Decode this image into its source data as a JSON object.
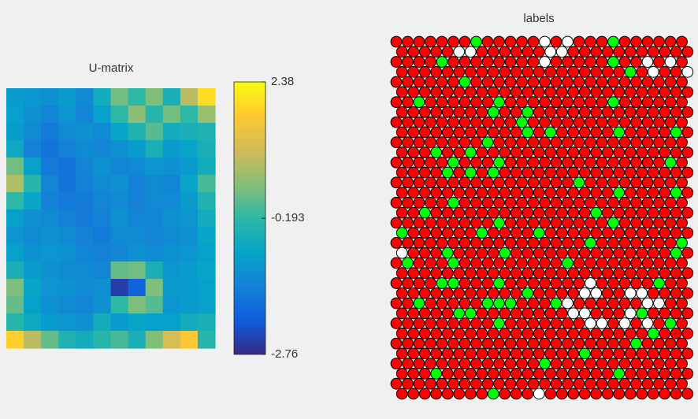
{
  "chart_data": [
    {
      "type": "heatmap",
      "title": "U-matrix",
      "colormap": [
        "#352a87",
        "#0f5cdd",
        "#1481d6",
        "#06a4ca",
        "#2eb7a4",
        "#87bf77",
        "#d1bb59",
        "#fec832",
        "#f9fb0e"
      ],
      "clim": [
        -2.76,
        2.38
      ],
      "cticks": [
        -2.76,
        -0.193,
        2.38
      ],
      "values": [
        [
          -1.0,
          -1.1,
          -1.2,
          -1.0,
          -1.3,
          -0.6,
          0.3,
          -0.2,
          0.4,
          -0.5,
          0.9,
          2.0
        ],
        [
          -0.9,
          -1.2,
          -1.4,
          -1.1,
          -1.4,
          -0.9,
          -0.2,
          0.5,
          -0.3,
          0.3,
          -0.2,
          0.6
        ],
        [
          -1.0,
          -1.3,
          -1.6,
          -1.3,
          -1.2,
          -1.3,
          -0.8,
          -0.4,
          0.1,
          -0.6,
          -0.5,
          -0.4
        ],
        [
          -0.7,
          -1.5,
          -1.7,
          -1.5,
          -1.3,
          -1.4,
          -1.2,
          -1.0,
          -0.5,
          -1.0,
          -0.8,
          -0.5
        ],
        [
          0.3,
          -0.9,
          -1.6,
          -1.7,
          -1.4,
          -1.2,
          -1.4,
          -1.3,
          -1.1,
          -1.2,
          -1.0,
          -0.6
        ],
        [
          0.8,
          -0.3,
          -1.4,
          -1.7,
          -1.5,
          -1.3,
          -1.2,
          -1.5,
          -1.3,
          -1.4,
          -0.8,
          0.0
        ],
        [
          -0.2,
          -0.8,
          -1.5,
          -1.6,
          -1.6,
          -1.4,
          -1.3,
          -1.5,
          -1.3,
          -1.3,
          -1.0,
          -0.4
        ],
        [
          -0.9,
          -1.2,
          -1.3,
          -1.5,
          -1.6,
          -1.5,
          -1.2,
          -1.4,
          -1.4,
          -1.2,
          -1.1,
          -0.6
        ],
        [
          -1.1,
          -1.3,
          -1.2,
          -1.3,
          -1.5,
          -1.6,
          -1.3,
          -1.3,
          -1.4,
          -1.3,
          -1.2,
          -0.8
        ],
        [
          -0.9,
          -1.2,
          -1.1,
          -1.2,
          -1.4,
          -1.5,
          -1.4,
          -1.2,
          -1.3,
          -1.2,
          -1.1,
          -0.9
        ],
        [
          -0.5,
          -1.0,
          -1.2,
          -1.3,
          -1.3,
          -1.4,
          0.2,
          0.3,
          -0.5,
          -1.1,
          -1.0,
          -0.8
        ],
        [
          0.4,
          -0.8,
          -1.1,
          -1.2,
          -1.3,
          -1.2,
          -2.5,
          -2.0,
          0.4,
          -1.0,
          -1.0,
          -0.9
        ],
        [
          0.2,
          -0.9,
          -1.2,
          -1.3,
          -1.4,
          -1.2,
          -0.2,
          0.4,
          0.1,
          -1.1,
          -1.0,
          -0.9
        ],
        [
          -0.3,
          -0.7,
          -1.0,
          -1.1,
          -1.2,
          -0.6,
          -1.0,
          -0.8,
          -0.9,
          -0.9,
          -0.6,
          -0.5
        ],
        [
          1.8,
          0.9,
          0.2,
          -0.4,
          -0.6,
          -0.3,
          0.0,
          -0.5,
          0.4,
          1.2,
          1.7,
          -0.3
        ]
      ]
    },
    {
      "type": "hexgrid",
      "title": "labels",
      "rows": 36,
      "cols": 26,
      "color": "#ff0000",
      "classes": [
        {
          "color": "#00ff00",
          "cells": [
            [
              0,
              7
            ],
            [
              0,
              19
            ],
            [
              2,
              4
            ],
            [
              2,
              19
            ],
            [
              3,
              20
            ],
            [
              4,
              6
            ],
            [
              6,
              2
            ],
            [
              6,
              9
            ],
            [
              6,
              19
            ],
            [
              7,
              8
            ],
            [
              7,
              11
            ],
            [
              8,
              11
            ],
            [
              9,
              11
            ],
            [
              9,
              13
            ],
            [
              9,
              19
            ],
            [
              9,
              24
            ],
            [
              10,
              8
            ],
            [
              11,
              3
            ],
            [
              11,
              6
            ],
            [
              12,
              5
            ],
            [
              12,
              9
            ],
            [
              12,
              24
            ],
            [
              13,
              4
            ],
            [
              13,
              6
            ],
            [
              13,
              8
            ],
            [
              14,
              16
            ],
            [
              15,
              19
            ],
            [
              15,
              24
            ],
            [
              16,
              5
            ],
            [
              17,
              2
            ],
            [
              17,
              17
            ],
            [
              18,
              9
            ],
            [
              18,
              19
            ],
            [
              19,
              0
            ],
            [
              19,
              7
            ],
            [
              19,
              12
            ],
            [
              20,
              17
            ],
            [
              20,
              25
            ],
            [
              21,
              4
            ],
            [
              21,
              9
            ],
            [
              21,
              24
            ],
            [
              22,
              1
            ],
            [
              22,
              5
            ],
            [
              22,
              15
            ],
            [
              24,
              4
            ],
            [
              24,
              5
            ],
            [
              24,
              9
            ],
            [
              24,
              23
            ],
            [
              25,
              11
            ],
            [
              26,
              2
            ],
            [
              26,
              8
            ],
            [
              26,
              9
            ],
            [
              26,
              10
            ],
            [
              26,
              14
            ],
            [
              27,
              5
            ],
            [
              27,
              6
            ],
            [
              27,
              21
            ],
            [
              28,
              9
            ],
            [
              28,
              24
            ],
            [
              29,
              22
            ],
            [
              30,
              21
            ],
            [
              31,
              16
            ],
            [
              32,
              13
            ],
            [
              33,
              3
            ],
            [
              33,
              19
            ],
            [
              35,
              8
            ]
          ]
        },
        {
          "color": "#ffffff",
          "cells": [
            [
              0,
              13
            ],
            [
              0,
              15
            ],
            [
              1,
              5
            ],
            [
              1,
              6
            ],
            [
              1,
              13
            ],
            [
              1,
              14
            ],
            [
              2,
              13
            ],
            [
              2,
              22
            ],
            [
              2,
              24
            ],
            [
              3,
              22
            ],
            [
              3,
              25
            ],
            [
              21,
              0
            ],
            [
              24,
              17
            ],
            [
              25,
              16
            ],
            [
              25,
              17
            ],
            [
              25,
              20
            ],
            [
              25,
              21
            ],
            [
              26,
              15
            ],
            [
              26,
              22
            ],
            [
              26,
              23
            ],
            [
              27,
              15
            ],
            [
              27,
              16
            ],
            [
              27,
              20
            ],
            [
              28,
              17
            ],
            [
              28,
              18
            ],
            [
              28,
              20
            ],
            [
              28,
              22
            ],
            [
              35,
              12
            ]
          ]
        }
      ]
    }
  ]
}
